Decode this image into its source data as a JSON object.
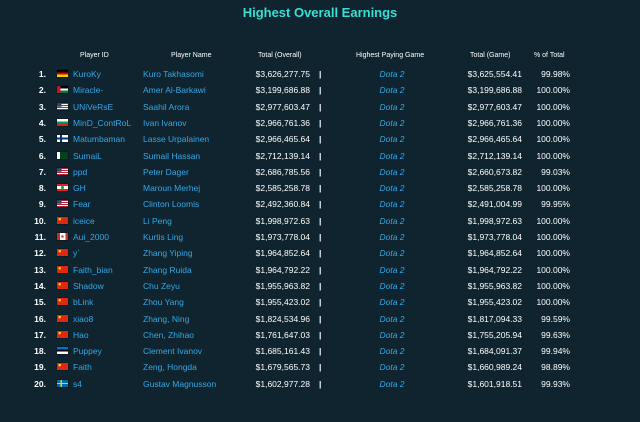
{
  "title": "Highest Overall Earnings",
  "headers": {
    "player_id": "Player ID",
    "player_name": "Player Name",
    "total_overall": "Total (Overall)",
    "highest_paying_game": "Highest Paying Game",
    "total_game": "Total (Game)",
    "pct_total": "% of Total"
  },
  "separator": "|",
  "rows": [
    {
      "rank": "1.",
      "flag": "germany-flag",
      "id": "KuroKy",
      "name": "Kuro Takhasomi",
      "total": "$3,626,277.75",
      "game": "Dota 2",
      "game_total": "$3,625,554.41",
      "pct": "99.98%"
    },
    {
      "rank": "2.",
      "flag": "jordan-flag",
      "id": "Miracle-",
      "name": "Amer Al-Barkawi",
      "total": "$3,199,686.88",
      "game": "Dota 2",
      "game_total": "$3,199,686.88",
      "pct": "100.00%"
    },
    {
      "rank": "3.",
      "flag": "usa-flag",
      "id": "UNiVeRsE",
      "name": "Saahil Arora",
      "total": "$2,977,603.47",
      "game": "Dota 2",
      "game_total": "$2,977,603.47",
      "pct": "100.00%"
    },
    {
      "rank": "4.",
      "flag": "bulgaria-flag",
      "id": "MinD_ContRoL",
      "name": "Ivan Ivanov",
      "total": "$2,966,761.36",
      "game": "Dota 2",
      "game_total": "$2,966,761.36",
      "pct": "100.00%"
    },
    {
      "rank": "5.",
      "flag": "finland-flag",
      "id": "Matumbaman",
      "name": "Lasse Urpalainen",
      "total": "$2,966,465.64",
      "game": "Dota 2",
      "game_total": "$2,966,465.64",
      "pct": "100.00%"
    },
    {
      "rank": "6.",
      "flag": "pakistan-flag",
      "id": "SumaiL",
      "name": "Sumail Hassan",
      "total": "$2,712,139.14",
      "game": "Dota 2",
      "game_total": "$2,712,139.14",
      "pct": "100.00%"
    },
    {
      "rank": "7.",
      "flag": "usa-flag",
      "id": "ppd",
      "name": "Peter Dager",
      "total": "$2,686,785.56",
      "game": "Dota 2",
      "game_total": "$2,660,673.82",
      "pct": "99.03%"
    },
    {
      "rank": "8.",
      "flag": "lebanon-flag",
      "id": "GH",
      "name": "Maroun Merhej",
      "total": "$2,585,258.78",
      "game": "Dota 2",
      "game_total": "$2,585,258.78",
      "pct": "100.00%"
    },
    {
      "rank": "9.",
      "flag": "usa-flag",
      "id": "Fear",
      "name": "Clinton Loomis",
      "total": "$2,492,360.84",
      "game": "Dota 2",
      "game_total": "$2,491,004.99",
      "pct": "99.95%"
    },
    {
      "rank": "10.",
      "flag": "china-flag",
      "id": "iceice",
      "name": "Li Peng",
      "total": "$1,998,972.63",
      "game": "Dota 2",
      "game_total": "$1,998,972.63",
      "pct": "100.00%"
    },
    {
      "rank": "11.",
      "flag": "canada-flag",
      "id": "Aui_2000",
      "name": "Kurtis Ling",
      "total": "$1,973,778.04",
      "game": "Dota 2",
      "game_total": "$1,973,778.04",
      "pct": "100.00%"
    },
    {
      "rank": "12.",
      "flag": "china-flag",
      "id": "y`",
      "name": "Zhang Yiping",
      "total": "$1,964,852.64",
      "game": "Dota 2",
      "game_total": "$1,964,852.64",
      "pct": "100.00%"
    },
    {
      "rank": "13.",
      "flag": "china-flag",
      "id": "Faith_bian",
      "name": "Zhang Ruida",
      "total": "$1,964,792.22",
      "game": "Dota 2",
      "game_total": "$1,964,792.22",
      "pct": "100.00%"
    },
    {
      "rank": "14.",
      "flag": "china-flag",
      "id": "Shadow",
      "name": "Chu Zeyu",
      "total": "$1,955,963.82",
      "game": "Dota 2",
      "game_total": "$1,955,963.82",
      "pct": "100.00%"
    },
    {
      "rank": "15.",
      "flag": "china-flag",
      "id": "bLink",
      "name": "Zhou Yang",
      "total": "$1,955,423.02",
      "game": "Dota 2",
      "game_total": "$1,955,423.02",
      "pct": "100.00%"
    },
    {
      "rank": "16.",
      "flag": "china-flag",
      "id": "xiao8",
      "name": "Zhang, Ning",
      "total": "$1,824,534.96",
      "game": "Dota 2",
      "game_total": "$1,817,094.33",
      "pct": "99.59%"
    },
    {
      "rank": "17.",
      "flag": "china-flag",
      "id": "Hao",
      "name": "Chen, Zhihao",
      "total": "$1,761,647.03",
      "game": "Dota 2",
      "game_total": "$1,755,205.94",
      "pct": "99.63%"
    },
    {
      "rank": "18.",
      "flag": "estonia-flag",
      "id": "Puppey",
      "name": "Clement Ivanov",
      "total": "$1,685,161.43",
      "game": "Dota 2",
      "game_total": "$1,684,091.37",
      "pct": "99.94%"
    },
    {
      "rank": "19.",
      "flag": "china-flag",
      "id": "Faith",
      "name": "Zeng, Hongda",
      "total": "$1,679,565.73",
      "game": "Dota 2",
      "game_total": "$1,660,989.24",
      "pct": "98.89%"
    },
    {
      "rank": "20.",
      "flag": "sweden-flag",
      "id": "s4",
      "name": "Gustav Magnusson",
      "total": "$1,602,977.28",
      "game": "Dota 2",
      "game_total": "$1,601,918.51",
      "pct": "99.93%"
    }
  ],
  "colors": {
    "background": "#0f242e",
    "title": "#36e0d4",
    "link": "#34a8e8",
    "text": "#ffffff"
  }
}
